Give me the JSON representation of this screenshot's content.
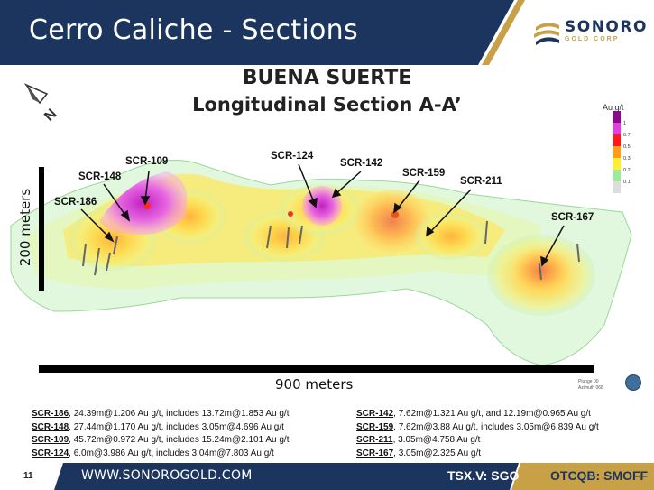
{
  "header": {
    "title": "Cerro Caliche - Sections",
    "logo": {
      "name": "SONORO",
      "sub": "GOLD CORP"
    }
  },
  "section": {
    "title1": "BUENA SUERTE",
    "title2": "Longitudinal Section A-A’"
  },
  "drillholes": [
    "SCR-109",
    "SCR-148",
    "SCR-186",
    "SCR-124",
    "SCR-142",
    "SCR-159",
    "SCR-211",
    "SCR-167"
  ],
  "scale": {
    "vertical": "200 meters",
    "horizontal": "900 meters"
  },
  "north_arrow": "N",
  "legend": {
    "title": "Au g/t",
    "values": [
      "1",
      "0.7",
      "0.5",
      "0.3",
      "0.2",
      "0.1"
    ],
    "colors": [
      "#8b0a8b",
      "#e040e0",
      "#ff1a1a",
      "#ff9d1a",
      "#ffee33",
      "#9fe89f",
      "#dddddd"
    ]
  },
  "plunge": "Plunge 00\nAzimuth 068",
  "results_left": [
    {
      "hole": "SCR-186",
      "text": ", 24.39m@1.206  Au g/t, includes 13.72m@1.853  Au g/t"
    },
    {
      "hole": "SCR-148",
      "text": ", 27.44m@1.170  Au g/t, includes 3.05m@4.696  Au g/t"
    },
    {
      "hole": "SCR-109",
      "text": ", 45.72m@0.972  Au g/t, includes 15.24m@2.101  Au g/t"
    },
    {
      "hole": "SCR-124",
      "text": ", 6.0m@3.986  Au g/t, includes 3.04m@7.803  Au g/t"
    }
  ],
  "results_right": [
    {
      "hole": "SCR-142",
      "text": ", 7.62m@1.321  Au g/t, and 12.19m@0.965  Au g/t"
    },
    {
      "hole": "SCR-159",
      "text": ", 7.62m@3.88  Au g/t, includes 3.05m@6.839  Au g/t"
    },
    {
      "hole": "SCR-211",
      "text": ", 3.05m@4.758  Au g/t"
    },
    {
      "hole": "SCR-167",
      "text": ", 3.05m@2.325  Au g/t"
    }
  ],
  "footer": {
    "page": "11",
    "website": "WWW.SONOROGOLD.COM",
    "tsx": "TSX.V: SGO",
    "otc": "OTCQB: SMOFF"
  }
}
